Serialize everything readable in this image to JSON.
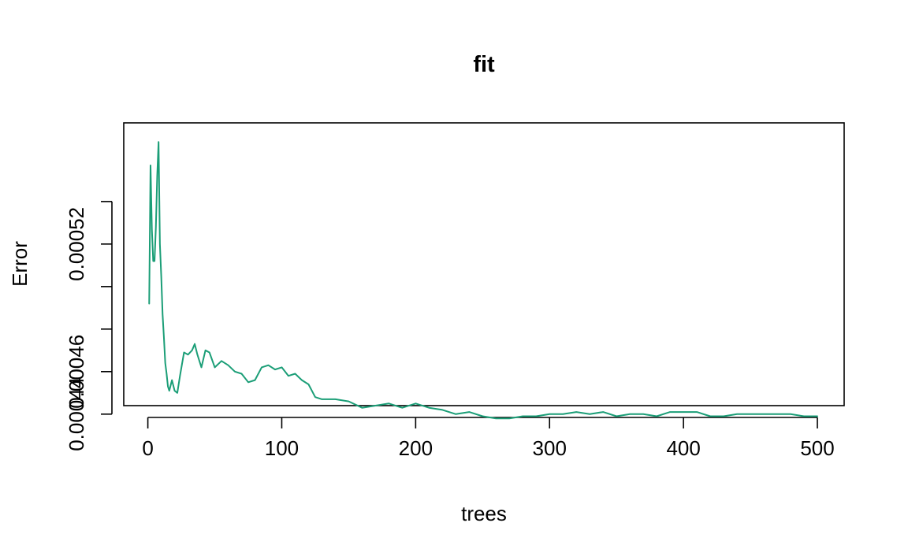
{
  "chart_data": {
    "type": "line",
    "title": "fit",
    "xlabel": "trees",
    "ylabel": "Error",
    "xlim": [
      -18,
      520
    ],
    "ylim": [
      0.000444,
      0.000577
    ],
    "x_ticks": [
      0,
      100,
      200,
      300,
      400,
      500
    ],
    "x_tick_labels": [
      "0",
      "100",
      "200",
      "300",
      "400",
      "500"
    ],
    "y_ticks": [
      0.00044,
      0.00046,
      0.00048,
      0.0005,
      0.00052,
      0.00054
    ],
    "y_tick_labels": [
      "0.00044",
      "0.00046",
      "",
      "",
      "0.00052",
      ""
    ],
    "grid": false,
    "series": [
      {
        "color": "#1b9e77",
        "points": [
          [
            1,
            0.000492
          ],
          [
            2,
            0.000557
          ],
          [
            3,
            0.000527
          ],
          [
            4,
            0.000512
          ],
          [
            5,
            0.000512
          ],
          [
            6,
            0.000528
          ],
          [
            7,
            0.000552
          ],
          [
            8,
            0.000568
          ],
          [
            9,
            0.00052
          ],
          [
            10,
            0.000505
          ],
          [
            11,
            0.000487
          ],
          [
            12,
            0.000476
          ],
          [
            13,
            0.000464
          ],
          [
            14,
            0.000459
          ],
          [
            15,
            0.000453
          ],
          [
            16,
            0.000451
          ],
          [
            18,
            0.000456
          ],
          [
            20,
            0.000451
          ],
          [
            22,
            0.00045
          ],
          [
            24,
            0.000458
          ],
          [
            27,
            0.000469
          ],
          [
            30,
            0.000468
          ],
          [
            33,
            0.00047
          ],
          [
            35,
            0.000473
          ],
          [
            37,
            0.000468
          ],
          [
            40,
            0.000462
          ],
          [
            43,
            0.00047
          ],
          [
            46,
            0.000469
          ],
          [
            50,
            0.000462
          ],
          [
            55,
            0.000465
          ],
          [
            60,
            0.000463
          ],
          [
            65,
            0.00046
          ],
          [
            70,
            0.000459
          ],
          [
            75,
            0.000455
          ],
          [
            80,
            0.000456
          ],
          [
            85,
            0.000462
          ],
          [
            90,
            0.000463
          ],
          [
            95,
            0.000461
          ],
          [
            100,
            0.000462
          ],
          [
            105,
            0.000458
          ],
          [
            110,
            0.000459
          ],
          [
            115,
            0.000456
          ],
          [
            120,
            0.000454
          ],
          [
            125,
            0.000448
          ],
          [
            130,
            0.000447
          ],
          [
            140,
            0.000447
          ],
          [
            150,
            0.000446
          ],
          [
            160,
            0.000443
          ],
          [
            170,
            0.000444
          ],
          [
            180,
            0.000445
          ],
          [
            190,
            0.000443
          ],
          [
            200,
            0.000445
          ],
          [
            210,
            0.000443
          ],
          [
            220,
            0.000442
          ],
          [
            230,
            0.00044
          ],
          [
            240,
            0.000441
          ],
          [
            250,
            0.000439
          ],
          [
            260,
            0.000438
          ],
          [
            270,
            0.000438
          ],
          [
            280,
            0.000439
          ],
          [
            290,
            0.000439
          ],
          [
            300,
            0.00044
          ],
          [
            310,
            0.00044
          ],
          [
            320,
            0.000441
          ],
          [
            330,
            0.00044
          ],
          [
            340,
            0.000441
          ],
          [
            350,
            0.000439
          ],
          [
            360,
            0.00044
          ],
          [
            370,
            0.00044
          ],
          [
            380,
            0.000439
          ],
          [
            390,
            0.000441
          ],
          [
            400,
            0.000441
          ],
          [
            410,
            0.000441
          ],
          [
            420,
            0.000439
          ],
          [
            430,
            0.000439
          ],
          [
            440,
            0.00044
          ],
          [
            450,
            0.00044
          ],
          [
            460,
            0.00044
          ],
          [
            470,
            0.00044
          ],
          [
            480,
            0.00044
          ],
          [
            490,
            0.000439
          ],
          [
            500,
            0.000439
          ]
        ]
      }
    ]
  }
}
